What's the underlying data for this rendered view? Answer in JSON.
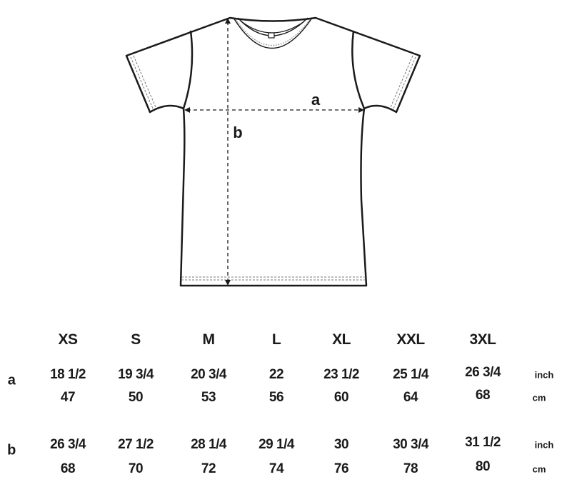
{
  "diagram": {
    "garment": "t-shirt",
    "measure_labels": {
      "a": "a",
      "b": "b"
    },
    "line_color": "#1a1a1a"
  },
  "size_table": {
    "sizes": [
      "XS",
      "S",
      "M",
      "L",
      "XL",
      "XXL",
      "3XL"
    ],
    "rows": [
      {
        "label": "a",
        "inch": [
          "18 1/2",
          "19 3/4",
          "20 3/4",
          "22",
          "23 1/2",
          "25 1/4",
          "26 3/4"
        ],
        "cm": [
          "47",
          "50",
          "53",
          "56",
          "60",
          "64",
          "68"
        ],
        "inch_unit": "inch",
        "cm_unit": "cm"
      },
      {
        "label": "b",
        "inch": [
          "26 3/4",
          "27 1/2",
          "28 1/4",
          "29 1/4",
          "30",
          "30 3/4",
          "31 1/2"
        ],
        "cm": [
          "68",
          "70",
          "72",
          "74",
          "76",
          "78",
          "80"
        ],
        "inch_unit": "inch",
        "cm_unit": "cm"
      }
    ]
  }
}
